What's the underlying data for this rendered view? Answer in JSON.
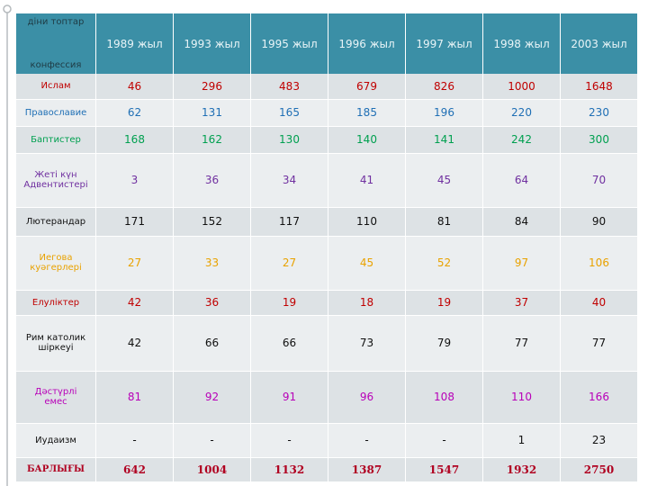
{
  "table": {
    "header": [
      [
        "діни топтар",
        "конфессия"
      ],
      "1989 жыл",
      "1993 жыл",
      "1995 жыл",
      "1996 жыл",
      "1997 жыл",
      "1998 жыл",
      "2003 жыл"
    ],
    "rows": [
      [
        [
          "Ислам"
        ],
        46,
        296,
        483,
        679,
        826,
        1000,
        1648
      ],
      [
        [
          "Православие"
        ],
        62,
        131,
        165,
        185,
        196,
        220,
        230
      ],
      [
        [
          "Баптистер"
        ],
        168,
        162,
        130,
        140,
        141,
        242,
        300
      ],
      [
        [
          "Жеті күн",
          "Адвентистері"
        ],
        3,
        36,
        34,
        41,
        45,
        64,
        70
      ],
      [
        [
          "Лютерандар"
        ],
        171,
        152,
        117,
        110,
        81,
        84,
        90
      ],
      [
        [
          "Иегова",
          "куәгерлері"
        ],
        27,
        33,
        27,
        45,
        52,
        97,
        106
      ],
      [
        [
          "Елуліктер"
        ],
        42,
        36,
        19,
        18,
        19,
        37,
        40
      ],
      [
        [
          "Рим католик",
          "шіркеуі"
        ],
        42,
        66,
        66,
        73,
        79,
        77,
        77
      ],
      [
        [
          "Дәстүрлі",
          "емес"
        ],
        81,
        92,
        91,
        96,
        108,
        110,
        166
      ],
      [
        [
          "Иудаизм"
        ],
        "-",
        "-",
        "-",
        "-",
        "-",
        1,
        23
      ],
      [
        [
          "БАРЛЫҒЫ"
        ],
        642,
        1004,
        1132,
        1387,
        1547,
        1932,
        2750
      ]
    ]
  }
}
